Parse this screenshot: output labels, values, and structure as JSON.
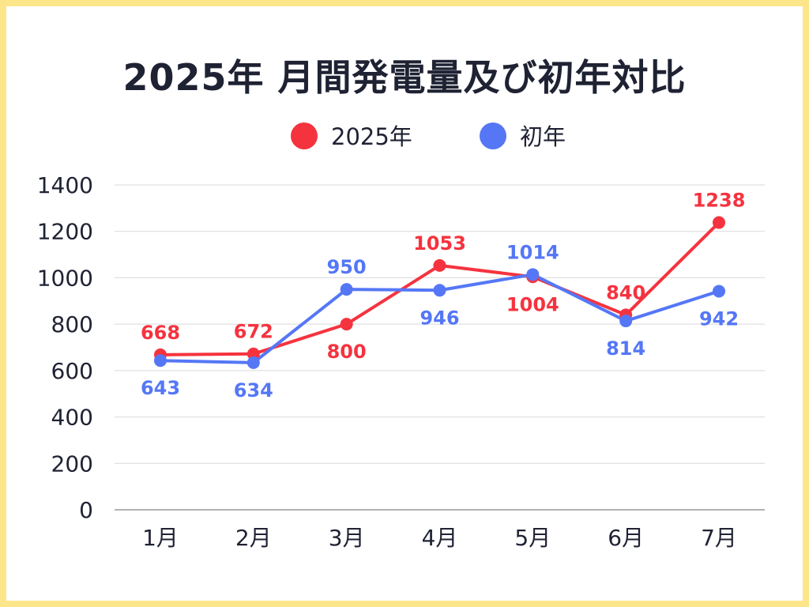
{
  "chart_data": {
    "type": "line",
    "title": "2025年 月間発電量及び初年対比",
    "categories": [
      "1月",
      "2月",
      "3月",
      "4月",
      "5月",
      "6月",
      "7月"
    ],
    "series": [
      {
        "name": "2025年",
        "color": "#f5333f",
        "values": [
          668,
          672,
          800,
          1053,
          1004,
          840,
          1238
        ]
      },
      {
        "name": "初年",
        "color": "#5577f6",
        "values": [
          643,
          634,
          950,
          946,
          1014,
          814,
          942
        ]
      }
    ],
    "ylim": [
      0,
      1400
    ],
    "yticks": [
      0,
      200,
      400,
      600,
      800,
      1000,
      1200,
      1400
    ],
    "grid": true,
    "legend": "top-center",
    "data_labels": true,
    "xlabel": "",
    "ylabel": ""
  },
  "colors": {
    "border": "#fde68a",
    "grid": "#d9d9d9",
    "axis": "#9a9a9a",
    "text": "#1f2233"
  }
}
